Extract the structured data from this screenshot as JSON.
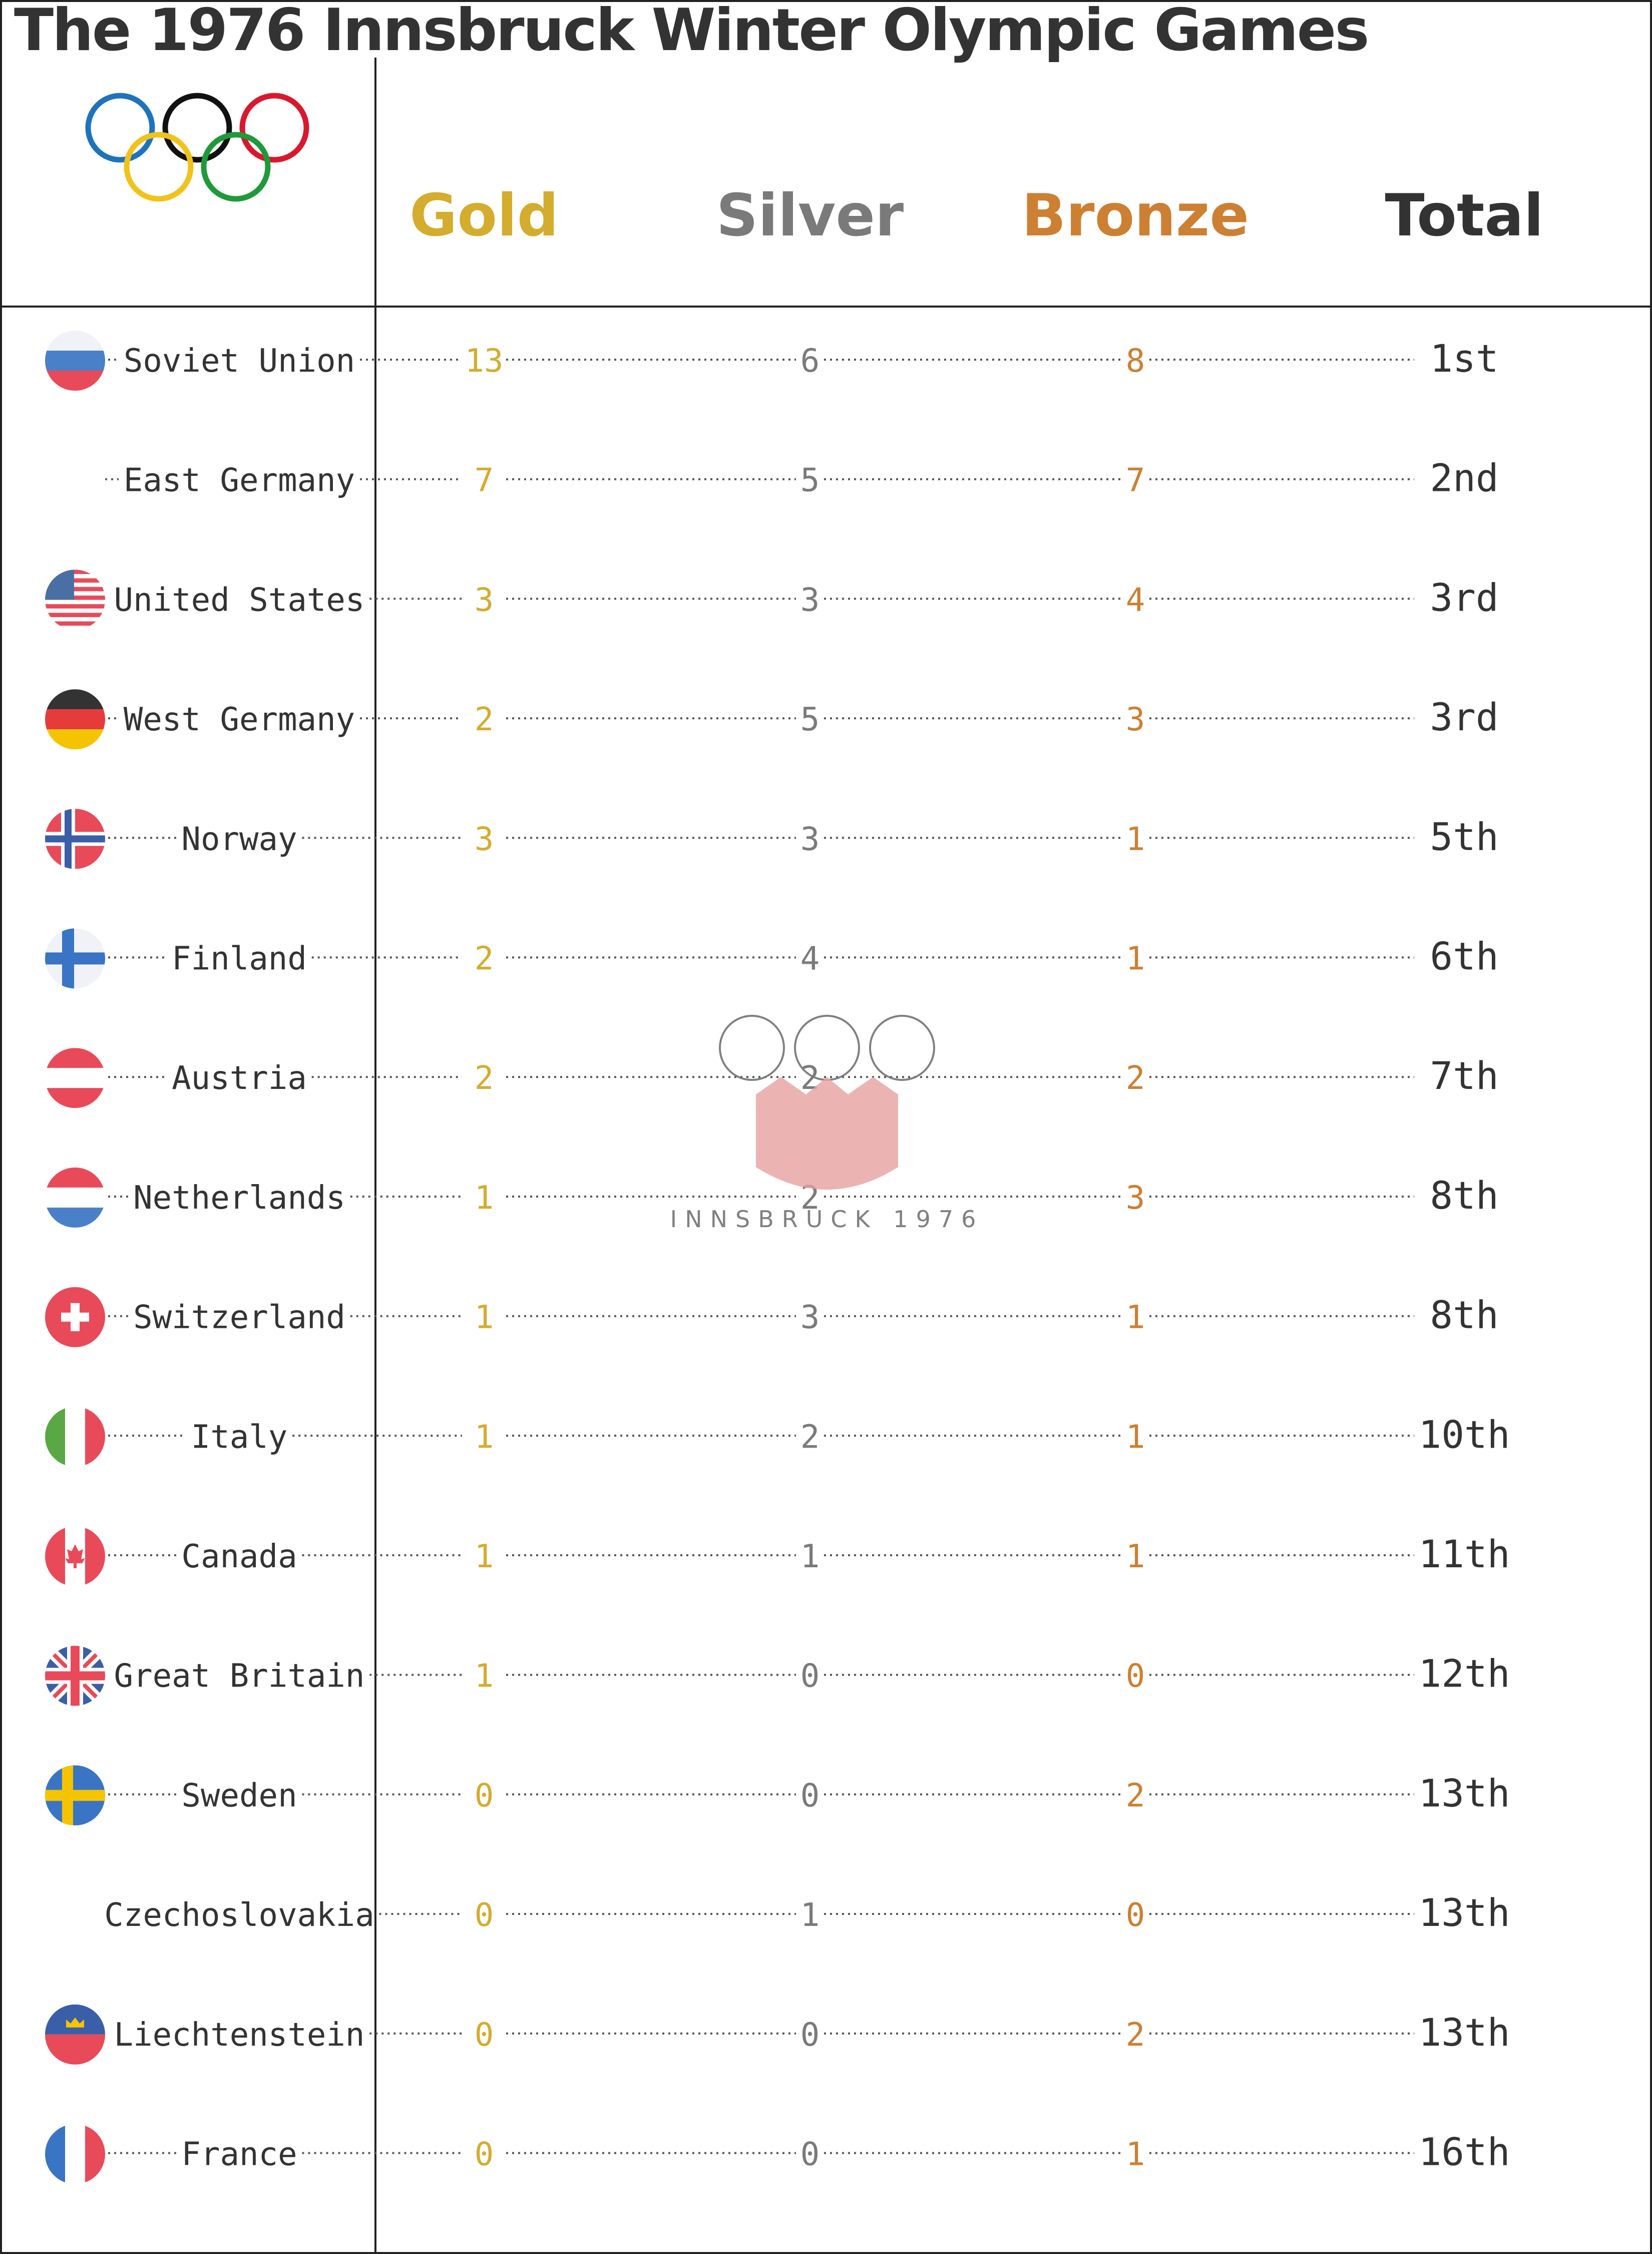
{
  "title": "The 1976 Innsbruck Winter Olympic Games",
  "colors": {
    "gold": "#d4ac2e",
    "silver": "#7a7a7a",
    "bronze": "#cd7f32",
    "total": "#333333",
    "text": "#333333"
  },
  "logo": {
    "rings_icon": "olympic-rings-icon",
    "watermark_icon": "innsbruck-1976-emblem-icon",
    "watermark_text": "INNSBRUCK 1976"
  },
  "chart_data": {
    "type": "table",
    "columns": [
      "Gold",
      "Silver",
      "Bronze",
      "Total"
    ],
    "rows": [
      {
        "country": "Soviet Union",
        "flag": "soviet-union-flag-icon",
        "gold": 13,
        "silver": 6,
        "bronze": 8,
        "total": "1st"
      },
      {
        "country": "East Germany",
        "flag": "",
        "gold": 7,
        "silver": 5,
        "bronze": 7,
        "total": "2nd"
      },
      {
        "country": "United States",
        "flag": "united-states-flag-icon",
        "gold": 3,
        "silver": 3,
        "bronze": 4,
        "total": "3rd"
      },
      {
        "country": "West Germany",
        "flag": "west-germany-flag-icon",
        "gold": 2,
        "silver": 5,
        "bronze": 3,
        "total": "3rd"
      },
      {
        "country": "Norway",
        "flag": "norway-flag-icon",
        "gold": 3,
        "silver": 3,
        "bronze": 1,
        "total": "5th"
      },
      {
        "country": "Finland",
        "flag": "finland-flag-icon",
        "gold": 2,
        "silver": 4,
        "bronze": 1,
        "total": "6th"
      },
      {
        "country": "Austria",
        "flag": "austria-flag-icon",
        "gold": 2,
        "silver": 2,
        "bronze": 2,
        "total": "7th"
      },
      {
        "country": "Netherlands",
        "flag": "netherlands-flag-icon",
        "gold": 1,
        "silver": 2,
        "bronze": 3,
        "total": "8th"
      },
      {
        "country": "Switzerland",
        "flag": "switzerland-flag-icon",
        "gold": 1,
        "silver": 3,
        "bronze": 1,
        "total": "8th"
      },
      {
        "country": "Italy",
        "flag": "italy-flag-icon",
        "gold": 1,
        "silver": 2,
        "bronze": 1,
        "total": "10th"
      },
      {
        "country": "Canada",
        "flag": "canada-flag-icon",
        "gold": 1,
        "silver": 1,
        "bronze": 1,
        "total": "11th"
      },
      {
        "country": "Great Britain",
        "flag": "great-britain-flag-icon",
        "gold": 1,
        "silver": 0,
        "bronze": 0,
        "total": "12th"
      },
      {
        "country": "Sweden",
        "flag": "sweden-flag-icon",
        "gold": 0,
        "silver": 0,
        "bronze": 2,
        "total": "13th"
      },
      {
        "country": "Czechoslovakia",
        "flag": "",
        "gold": 0,
        "silver": 1,
        "bronze": 0,
        "total": "13th"
      },
      {
        "country": "Liechtenstein",
        "flag": "liechtenstein-flag-icon",
        "gold": 0,
        "silver": 0,
        "bronze": 2,
        "total": "13th"
      },
      {
        "country": "France",
        "flag": "france-flag-icon",
        "gold": 0,
        "silver": 0,
        "bronze": 1,
        "total": "16th"
      }
    ]
  }
}
